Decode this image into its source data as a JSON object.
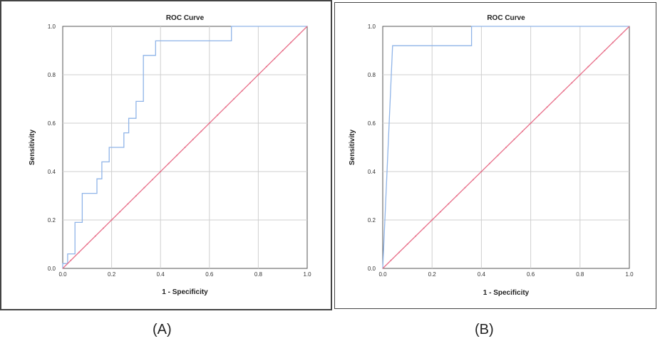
{
  "captions": {
    "a": "(A)",
    "b": "(B)"
  },
  "colors": {
    "roc": "#8fb4e8",
    "reference": "#e8708a",
    "grid": "#cfcfcf",
    "axis": "#555555"
  },
  "chart_data": [
    {
      "type": "line",
      "title": "ROC Curve",
      "xlabel": "1 - Specificity",
      "ylabel": "Sensitivity",
      "xlim": [
        0,
        1
      ],
      "ylim": [
        0,
        1
      ],
      "xticks": [
        "0.0",
        "0.2",
        "0.4",
        "0.6",
        "0.8",
        "1.0"
      ],
      "yticks": [
        "0.0",
        "0.2",
        "0.4",
        "0.6",
        "0.8",
        "1.0"
      ],
      "grid": true,
      "series": [
        {
          "role": "roc",
          "x": [
            0,
            0,
            0.02,
            0.02,
            0.05,
            0.05,
            0.08,
            0.08,
            0.14,
            0.14,
            0.16,
            0.16,
            0.19,
            0.19,
            0.25,
            0.25,
            0.27,
            0.27,
            0.3,
            0.3,
            0.33,
            0.33,
            0.38,
            0.38,
            0.69,
            0.69,
            1.0
          ],
          "y": [
            0,
            0.02,
            0.02,
            0.06,
            0.06,
            0.19,
            0.19,
            0.31,
            0.31,
            0.37,
            0.37,
            0.44,
            0.44,
            0.5,
            0.5,
            0.56,
            0.56,
            0.62,
            0.62,
            0.69,
            0.69,
            0.88,
            0.88,
            0.94,
            0.94,
            1.0,
            1.0
          ]
        },
        {
          "role": "reference",
          "x": [
            0,
            1
          ],
          "y": [
            0,
            1
          ]
        }
      ]
    },
    {
      "type": "line",
      "title": "ROC Curve",
      "xlabel": "1 - Specificity",
      "ylabel": "Sensitivity",
      "xlim": [
        0,
        1
      ],
      "ylim": [
        0,
        1
      ],
      "xticks": [
        "0.0",
        "0.2",
        "0.4",
        "0.6",
        "0.8",
        "1.0"
      ],
      "yticks": [
        "0.0",
        "0.2",
        "0.4",
        "0.6",
        "0.8",
        "1.0"
      ],
      "grid": true,
      "series": [
        {
          "role": "roc",
          "x": [
            0,
            0.04,
            0.04,
            0.36,
            0.36,
            1.0
          ],
          "y": [
            0,
            0.92,
            0.92,
            0.92,
            1.0,
            1.0
          ]
        },
        {
          "role": "reference",
          "x": [
            0,
            1
          ],
          "y": [
            0,
            1
          ]
        }
      ]
    }
  ]
}
